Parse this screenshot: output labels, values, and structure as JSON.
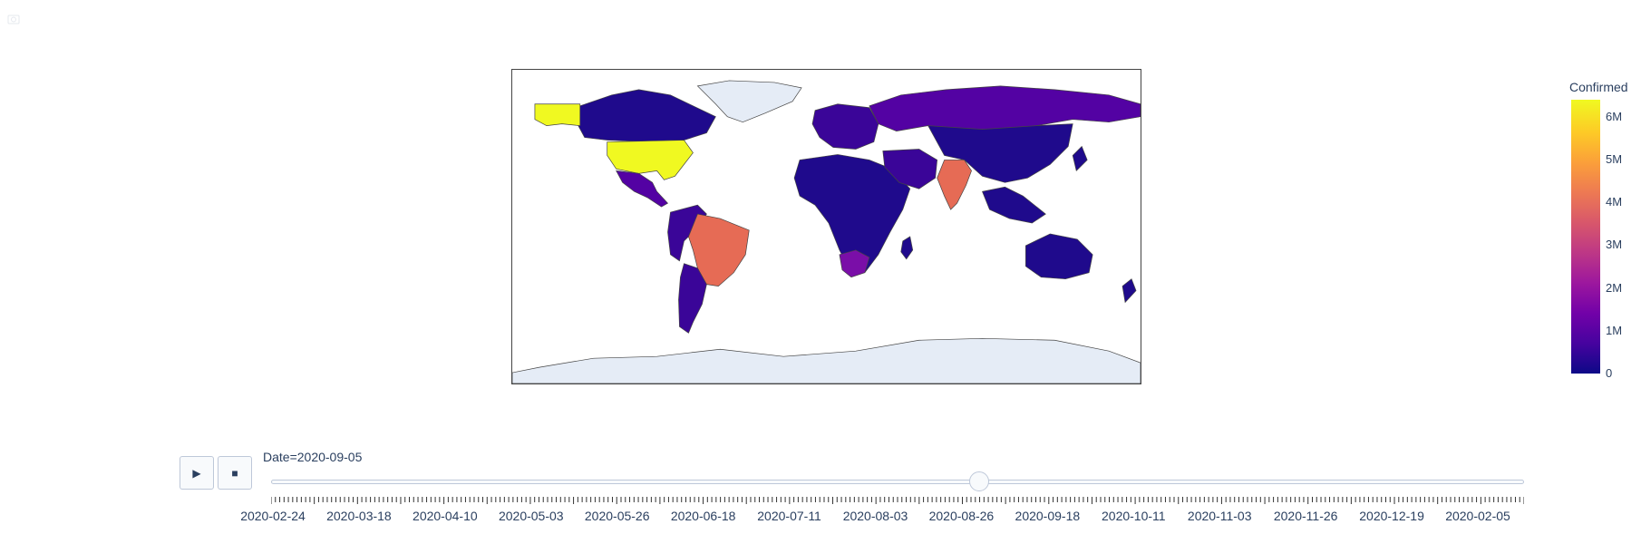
{
  "colors": {
    "ocean": "#ffffff",
    "no_data_land": "#e5ecf6",
    "border": "#444444",
    "low": "#1f0a8c",
    "low_mid": "#3a0598",
    "mid": "#5302a3",
    "brazil_india": "#e66b55",
    "usa": "#f0f921",
    "south_africa": "#7a0ea8"
  },
  "toolbar": {
    "icon": "camera-icon"
  },
  "colorbar": {
    "title": "Confirmed",
    "ticks": [
      "6M",
      "5M",
      "4M",
      "3M",
      "2M",
      "1M",
      "0"
    ],
    "max": 6.4,
    "tick_values": [
      6,
      5,
      4,
      3,
      2,
      1,
      0
    ]
  },
  "animation": {
    "play_icon": "▶",
    "stop_icon": "■",
    "current_label": "Date=2020-09-05",
    "position_fraction": 0.565,
    "tick_labels": [
      "2020-02-24",
      "2020-03-18",
      "2020-04-10",
      "2020-05-03",
      "2020-05-26",
      "2020-06-18",
      "2020-07-11",
      "2020-08-03",
      "2020-08-26",
      "2020-09-18",
      "2020-10-11",
      "2020-11-03",
      "2020-11-26",
      "2020-12-19",
      "2020-02-05"
    ]
  }
}
